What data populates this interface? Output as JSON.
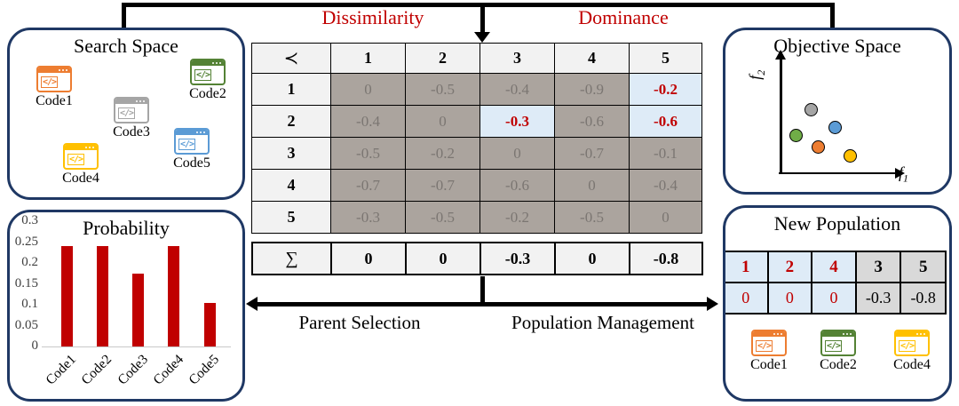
{
  "flow": {
    "dissimilarity": "Dissimilarity",
    "dominance": "Dominance",
    "parent_selection": "Parent Selection",
    "population_management": "Population Management"
  },
  "colors": {
    "accent_red": "#C00000",
    "panel_border_navy": "#1F3864",
    "orange": "#ED7D31",
    "green_icon": "#548235",
    "green_point": "#70AD47",
    "gray": "#A5A5A5",
    "yellow": "#FFC000",
    "blue": "#5B9BD5",
    "matrix_cell_gray": "#ABA49E",
    "matrix_header_light": "#F2F2F2",
    "highlight_blue": "#DEEBF7",
    "population_gray": "#D9D9D9"
  },
  "search_space": {
    "title": "Search Space",
    "codes": [
      {
        "label": "Code1",
        "color": "#ED7D31"
      },
      {
        "label": "Code2",
        "color": "#548235"
      },
      {
        "label": "Code3",
        "color": "#A5A5A5"
      },
      {
        "label": "Code4",
        "color": "#FFC000"
      },
      {
        "label": "Code5",
        "color": "#5B9BD5"
      }
    ]
  },
  "objective_space": {
    "title": "Objective Space",
    "xlabel_base": "f",
    "xlabel_sub": "1",
    "ylabel_base": "f",
    "ylabel_sub": "2"
  },
  "matrix": {
    "corner": "≺",
    "col_headers": [
      "1",
      "2",
      "3",
      "4",
      "5"
    ],
    "row_headers": [
      "1",
      "2",
      "3",
      "4",
      "5"
    ],
    "values": [
      [
        "0",
        "-0.5",
        "-0.4",
        "-0.9",
        "-0.2"
      ],
      [
        "-0.4",
        "0",
        "-0.3",
        "-0.6",
        "-0.6"
      ],
      [
        "-0.5",
        "-0.2",
        "0",
        "-0.7",
        "-0.1"
      ],
      [
        "-0.7",
        "-0.7",
        "-0.6",
        "0",
        "-0.4"
      ],
      [
        "-0.3",
        "-0.5",
        "-0.2",
        "-0.5",
        "0"
      ]
    ],
    "highlighted_cells": [
      [
        0,
        4
      ],
      [
        1,
        2
      ],
      [
        1,
        4
      ]
    ],
    "sum_label": "∑",
    "sums": [
      "0",
      "0",
      "-0.3",
      "0",
      "-0.8"
    ]
  },
  "new_population": {
    "title": "New Population",
    "columns": [
      {
        "id": "1",
        "score": "0",
        "selected": true
      },
      {
        "id": "2",
        "score": "0",
        "selected": true
      },
      {
        "id": "4",
        "score": "0",
        "selected": true
      },
      {
        "id": "3",
        "score": "-0.3",
        "selected": false
      },
      {
        "id": "5",
        "score": "-0.8",
        "selected": false
      }
    ],
    "codes": [
      {
        "label": "Code1",
        "color": "#ED7D31"
      },
      {
        "label": "Code2",
        "color": "#548235"
      },
      {
        "label": "Code4",
        "color": "#FFC000"
      }
    ]
  },
  "chart_data": [
    {
      "type": "bar",
      "title": "Probability",
      "categories": [
        "Code1",
        "Code2",
        "Code3",
        "Code4",
        "Code5"
      ],
      "values": [
        0.24,
        0.24,
        0.175,
        0.24,
        0.105
      ],
      "bar_color": "#C00000",
      "yticks": [
        "0.3",
        "0.25",
        "0.2",
        "0.15",
        "0.1",
        "0.05",
        "0"
      ],
      "ylim": [
        0,
        0.3
      ],
      "xlabel": "",
      "ylabel": "",
      "grid": false,
      "legend": false
    },
    {
      "type": "scatter",
      "title": "Objective Space",
      "xlabel": "f1",
      "ylabel": "f2",
      "xlim": [
        0,
        1
      ],
      "ylim": [
        0,
        1
      ],
      "points": [
        {
          "code": "Code3",
          "color": "#A5A5A5",
          "x": 0.27,
          "y": 0.56
        },
        {
          "code": "Code5",
          "color": "#5B9BD5",
          "x": 0.47,
          "y": 0.4
        },
        {
          "code": "Code2",
          "color": "#70AD47",
          "x": 0.14,
          "y": 0.33
        },
        {
          "code": "Code1",
          "color": "#ED7D31",
          "x": 0.33,
          "y": 0.23
        },
        {
          "code": "Code4",
          "color": "#FFC000",
          "x": 0.6,
          "y": 0.15
        }
      ]
    }
  ]
}
